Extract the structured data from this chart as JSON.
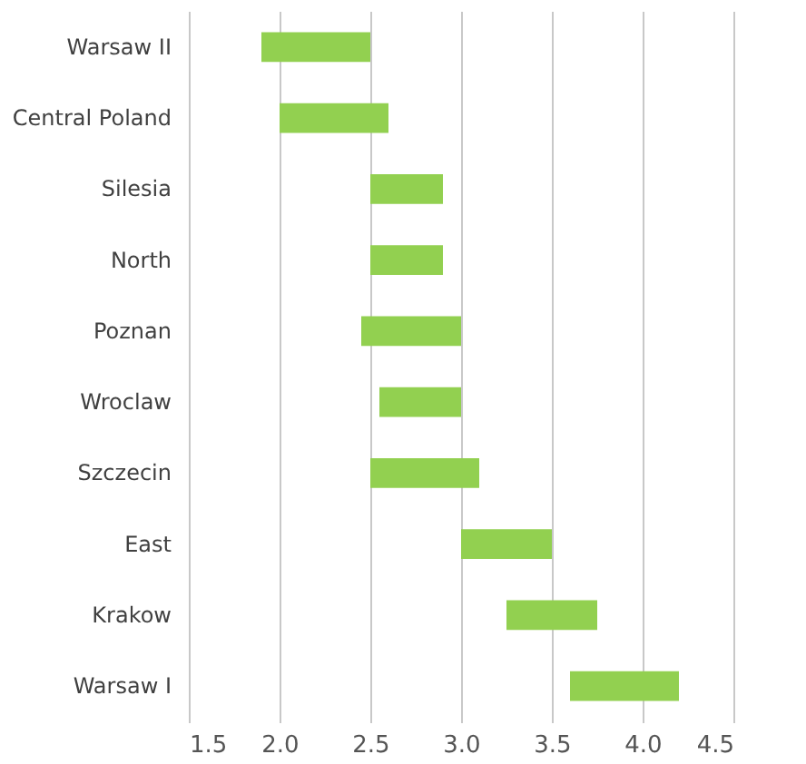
{
  "chart_data": {
    "type": "bar",
    "orientation": "horizontal",
    "categories": [
      "Warsaw II",
      "Central Poland",
      "Silesia",
      "North",
      "Poznan",
      "Wroclaw",
      "Szczecin",
      "East",
      "Krakow",
      "Warsaw I"
    ],
    "base": [
      1.9,
      2.0,
      2.5,
      2.5,
      2.45,
      2.55,
      2.5,
      3.0,
      3.25,
      3.6
    ],
    "values": [
      0.6,
      0.6,
      0.4,
      0.4,
      0.55,
      0.45,
      0.6,
      0.5,
      0.5,
      0.6
    ],
    "color": "#92d050",
    "xlim": [
      1.5,
      4.5
    ],
    "xticks": [
      {
        "value": 1.5,
        "label": "1.5"
      },
      {
        "value": 2,
        "label": "2.0"
      },
      {
        "value": 2.5,
        "label": "2.5"
      },
      {
        "value": 3,
        "label": "3.0"
      },
      {
        "value": 3.5,
        "label": "3.5"
      },
      {
        "value": 4,
        "label": "4.0"
      },
      {
        "value": 4.5,
        "label": "4.5"
      }
    ],
    "grid": "x"
  }
}
